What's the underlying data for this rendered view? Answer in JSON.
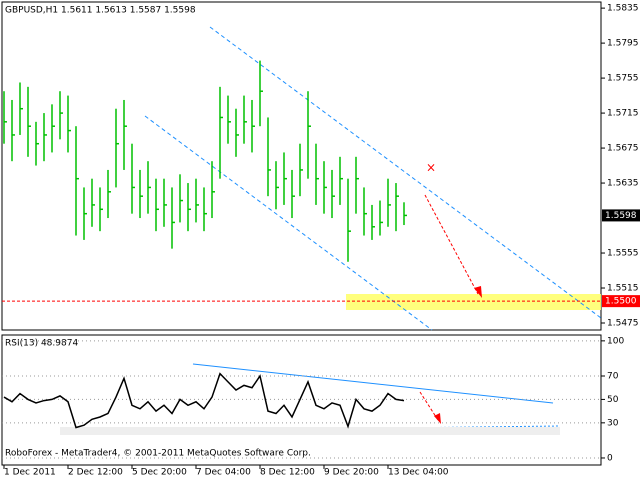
{
  "chart_data": [
    {
      "type": "ohlc",
      "title": "GBPUSD,H1  1.5611 1.5613 1.5587 1.5598",
      "color": "#00c000",
      "categories": [
        "1 Dec 2011",
        null,
        null,
        null,
        null,
        null,
        null,
        null,
        "2 Dec 12:00",
        null,
        null,
        null,
        null,
        null,
        null,
        null,
        "5 Dec 20:00",
        null,
        null,
        null,
        null,
        null,
        null,
        null,
        "7 Dec 04:00",
        null,
        null,
        null,
        null,
        null,
        null,
        null,
        "8 Dec 12:00",
        null,
        null,
        null,
        null,
        null,
        null,
        null,
        "9 Dec 20:00",
        null,
        null,
        null,
        null,
        null,
        null,
        null,
        "13 Dec 04:00",
        null,
        null
      ],
      "high": [
        1.574,
        1.573,
        1.575,
        1.5745,
        1.5705,
        1.5715,
        1.5725,
        1.574,
        1.5735,
        1.57,
        1.563,
        1.564,
        1.563,
        1.565,
        1.572,
        1.573,
        1.568,
        1.565,
        1.566,
        1.564,
        1.564,
        1.563,
        1.5645,
        1.5635,
        1.564,
        1.563,
        1.566,
        1.5745,
        1.5735,
        1.572,
        1.5735,
        1.573,
        1.5775,
        1.571,
        1.566,
        1.567,
        1.565,
        1.568,
        1.574,
        1.568,
        1.566,
        1.565,
        1.5665,
        1.564,
        1.5665,
        1.563,
        1.561,
        1.5615,
        1.564,
        1.5635,
        1.5613
      ],
      "low": [
        1.568,
        1.566,
        1.569,
        1.5665,
        1.5655,
        1.566,
        1.567,
        1.5685,
        1.567,
        1.5575,
        1.557,
        1.5585,
        1.558,
        1.5595,
        1.563,
        1.565,
        1.56,
        1.5595,
        1.56,
        1.558,
        1.5585,
        1.556,
        1.559,
        1.558,
        1.559,
        1.558,
        1.5595,
        1.564,
        1.568,
        1.5665,
        1.568,
        1.567,
        1.57,
        1.562,
        1.5605,
        1.561,
        1.5595,
        1.562,
        1.564,
        1.561,
        1.56,
        1.5595,
        1.561,
        1.5545,
        1.56,
        1.5575,
        1.557,
        1.5575,
        1.5585,
        1.558,
        1.5587
      ],
      "close": [
        1.5705,
        1.569,
        1.572,
        1.57,
        1.568,
        1.569,
        1.57,
        1.5715,
        1.5695,
        1.564,
        1.56,
        1.561,
        1.5605,
        1.5625,
        1.568,
        1.57,
        1.563,
        1.562,
        1.563,
        1.5605,
        1.561,
        1.559,
        1.5615,
        1.5605,
        1.561,
        1.56,
        1.5625,
        1.571,
        1.5705,
        1.569,
        1.5705,
        1.57,
        1.574,
        1.565,
        1.563,
        1.564,
        1.562,
        1.565,
        1.57,
        1.564,
        1.563,
        1.562,
        1.564,
        1.558,
        1.564,
        1.56,
        1.5585,
        1.559,
        1.561,
        1.562,
        1.5598
      ],
      "ylim": [
        1.5467,
        1.5842
      ],
      "yticks": [
        1.5475,
        1.5515,
        1.5555,
        1.5635,
        1.5675,
        1.5715,
        1.5755,
        1.5795,
        1.5835
      ],
      "last": 1.5598,
      "level": {
        "value": 1.55,
        "label": "1.5500"
      }
    },
    {
      "type": "line",
      "title": "RSI(13) 48.9874",
      "color": "#000000",
      "values": [
        52,
        48,
        55,
        50,
        47,
        49,
        50,
        53,
        48,
        26,
        28,
        33,
        35,
        38,
        52,
        68,
        45,
        42,
        48,
        40,
        45,
        38,
        50,
        45,
        48,
        42,
        52,
        72,
        65,
        58,
        62,
        60,
        70,
        40,
        38,
        45,
        35,
        50,
        65,
        45,
        42,
        47,
        45,
        27,
        50,
        42,
        40,
        45,
        55,
        50,
        48.9874
      ],
      "ylim": [
        -6,
        105
      ],
      "yticks": [
        0,
        30,
        50,
        70,
        100
      ]
    }
  ],
  "footer": "RoboForex - MetaTrader4, © 2001-2011 MetaQuotes Software Corp."
}
